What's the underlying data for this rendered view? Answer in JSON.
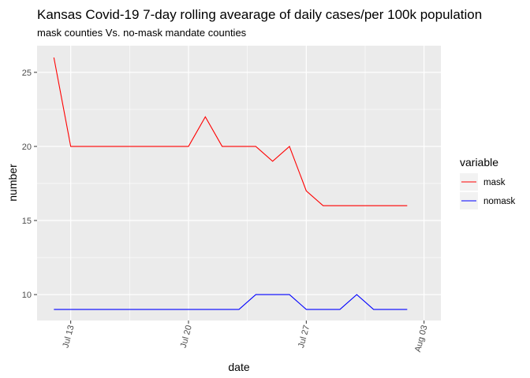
{
  "chart_data": {
    "type": "line",
    "title": "Kansas Covid-19 7-day rolling avearage of daily cases/per  100k population",
    "subtitle": "mask counties Vs. no-mask mandate counties",
    "xlabel": "date",
    "ylabel": "number",
    "x_ticks": [
      "Jul 13",
      "Jul 20",
      "Jul 27",
      "Aug 03"
    ],
    "y_ticks": [
      "10",
      "15",
      "20",
      "25"
    ],
    "x_range": [
      "2020-07-11",
      "2020-08-04"
    ],
    "ylim": [
      8.25,
      26.8
    ],
    "grid": true,
    "legend_position": "right",
    "legend_title": "variable",
    "x": [
      "2020-07-12",
      "2020-07-13",
      "2020-07-14",
      "2020-07-15",
      "2020-07-16",
      "2020-07-17",
      "2020-07-18",
      "2020-07-19",
      "2020-07-20",
      "2020-07-21",
      "2020-07-22",
      "2020-07-23",
      "2020-07-24",
      "2020-07-25",
      "2020-07-26",
      "2020-07-27",
      "2020-07-28",
      "2020-07-29",
      "2020-07-30",
      "2020-07-31",
      "2020-08-01",
      "2020-08-02"
    ],
    "series": [
      {
        "name": "mask",
        "color": "#ff0000",
        "values": [
          26,
          20,
          20,
          20,
          20,
          20,
          20,
          20,
          20,
          22,
          20,
          20,
          20,
          19,
          20,
          17,
          16,
          16,
          16,
          16,
          16,
          16
        ]
      },
      {
        "name": "nomask",
        "color": "#0000ff",
        "values": [
          9,
          9,
          9,
          9,
          9,
          9,
          9,
          9,
          9,
          9,
          9,
          9,
          10,
          10,
          10,
          9,
          9,
          9,
          10,
          9,
          9,
          9
        ]
      }
    ],
    "colors": {
      "panel": "#ebebeb",
      "grid": "#ffffff"
    }
  }
}
